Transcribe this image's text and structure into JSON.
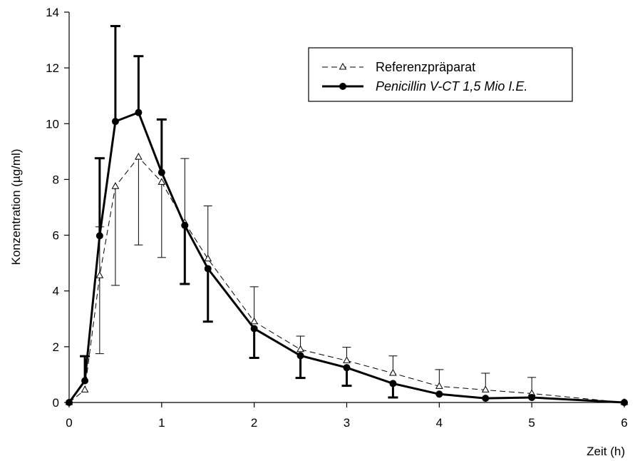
{
  "chart_data": {
    "type": "line",
    "title": "",
    "xlabel": "Zeit (h)",
    "ylabel": "Konzentration (µg/ml)",
    "xlim": [
      0,
      6
    ],
    "ylim": [
      0,
      14
    ],
    "xticks": [
      0,
      1,
      2,
      3,
      4,
      5,
      6
    ],
    "yticks": [
      0,
      2,
      4,
      6,
      8,
      10,
      12,
      14
    ],
    "x": [
      0,
      0.17,
      0.33,
      0.5,
      0.75,
      1,
      1.25,
      1.5,
      2,
      2.5,
      3,
      3.5,
      4,
      4.5,
      5,
      6
    ],
    "grid": false,
    "legend_position": "top-right",
    "series": [
      {
        "name": "Referenzpräparat",
        "marker": "open-triangle",
        "line_style": "dashed",
        "values": [
          0,
          0.45,
          4.55,
          7.75,
          8.8,
          7.9,
          6.45,
          5.15,
          2.9,
          1.9,
          1.5,
          1.05,
          0.58,
          0.45,
          0.32,
          0
        ],
        "error_upper": [
          0,
          0,
          1.75,
          0,
          0,
          0,
          2.3,
          1.9,
          1.25,
          0.48,
          0.48,
          0.62,
          0.6,
          0.6,
          0.58,
          0
        ],
        "error_lower": [
          0,
          0,
          2.8,
          3.55,
          3.15,
          2.7,
          0,
          0,
          0,
          0,
          0,
          0,
          0,
          0,
          0,
          0
        ]
      },
      {
        "name": "Penicillin V-CT 1,5 Mio I.E.",
        "marker": "filled-circle",
        "line_style": "solid",
        "values": [
          0,
          0.78,
          5.98,
          10.08,
          10.4,
          8.25,
          6.35,
          4.8,
          2.65,
          1.68,
          1.25,
          0.68,
          0.3,
          0.15,
          0.18,
          0
        ],
        "error_upper": [
          0,
          0.88,
          2.78,
          3.42,
          2.02,
          1.9,
          0,
          0,
          0,
          0,
          0,
          0,
          0,
          0,
          0,
          0
        ],
        "error_lower": [
          0,
          0,
          0,
          0,
          0,
          0,
          2.1,
          1.9,
          1.05,
          0.8,
          0.65,
          0.5,
          0,
          0,
          0,
          0
        ]
      }
    ]
  }
}
